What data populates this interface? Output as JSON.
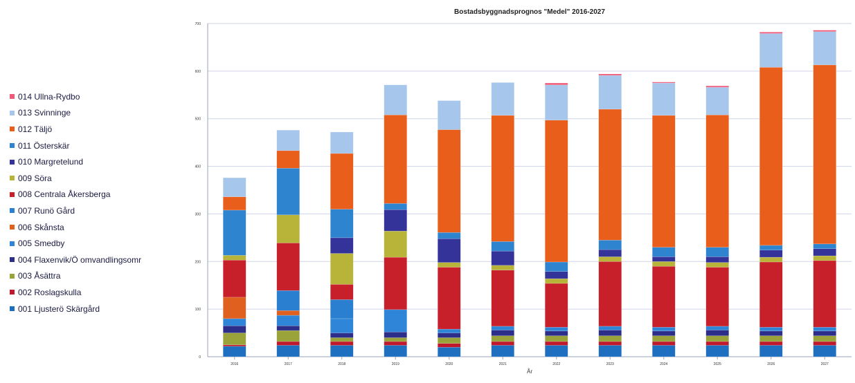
{
  "chart_data": {
    "type": "bar",
    "stacked": true,
    "title": "Bostadsbyggnadsprognos \"Medel\" 2016-2027",
    "xlabel": "År",
    "ylabel": "",
    "ylim": [
      0,
      700
    ],
    "yticks": [
      "0",
      "100",
      "200",
      "300",
      "400",
      "500",
      "600",
      "700"
    ],
    "categories": [
      "2016",
      "2017",
      "2018",
      "2019",
      "2020",
      "2021",
      "2022",
      "2023",
      "2024",
      "2025",
      "2026",
      "2027"
    ],
    "legend_position": "left",
    "grid": true,
    "series": [
      {
        "name": "001 Ljusterö Skärgård",
        "color": "#1f6fc0",
        "values": [
          22,
          24,
          24,
          24,
          20,
          24,
          24,
          24,
          24,
          24,
          24,
          24
        ]
      },
      {
        "name": "002 Roslagskulla",
        "color": "#c0182c",
        "values": [
          3,
          8,
          8,
          8,
          8,
          8,
          8,
          8,
          8,
          8,
          8,
          8
        ]
      },
      {
        "name": "003 Åsättra",
        "color": "#9aa33a",
        "values": [
          25,
          23,
          8,
          8,
          12,
          12,
          12,
          12,
          12,
          12,
          12,
          12
        ]
      },
      {
        "name": "004 Flaxenvik/Ö omvandlingsomr",
        "color": "#2d2d8a",
        "values": [
          15,
          10,
          10,
          12,
          10,
          12,
          10,
          12,
          10,
          12,
          10,
          10
        ]
      },
      {
        "name": "005 Smedby",
        "color": "#2f86d8",
        "values": [
          15,
          22,
          30,
          47,
          8,
          8,
          8,
          8,
          8,
          8,
          8,
          8
        ]
      },
      {
        "name": "006 Skånsta",
        "color": "#e06020",
        "values": [
          45,
          10,
          0,
          0,
          0,
          0,
          0,
          0,
          0,
          0,
          0,
          0
        ]
      },
      {
        "name": "007 Runö Gård",
        "color": "#2a7fd0",
        "values": [
          0,
          42,
          40,
          0,
          0,
          0,
          0,
          0,
          0,
          0,
          0,
          0
        ]
      },
      {
        "name": "008 Centrala Åkersberga",
        "color": "#c8202a",
        "values": [
          78,
          100,
          32,
          110,
          130,
          118,
          92,
          136,
          128,
          124,
          137,
          140
        ]
      },
      {
        "name": "009 Söra",
        "color": "#b8b43a",
        "values": [
          10,
          59,
          65,
          55,
          10,
          10,
          10,
          10,
          10,
          10,
          10,
          10
        ]
      },
      {
        "name": "010 Margretelund",
        "color": "#33339a",
        "values": [
          0,
          0,
          33,
          45,
          50,
          30,
          15,
          15,
          10,
          12,
          15,
          15
        ]
      },
      {
        "name": "011 Österskär",
        "color": "#2f84d0",
        "values": [
          95,
          98,
          60,
          13,
          13,
          20,
          20,
          20,
          20,
          20,
          10,
          10
        ]
      },
      {
        "name": "012 Täljö",
        "color": "#ea5e1c",
        "values": [
          28,
          37,
          117,
          186,
          216,
          265,
          298,
          275,
          277,
          278,
          374,
          376
        ]
      },
      {
        "name": "013 Svinninge",
        "color": "#a6c6ec",
        "values": [
          40,
          43,
          45,
          63,
          61,
          69,
          74,
          71,
          68,
          58,
          71,
          70
        ]
      },
      {
        "name": "014 Ullna-Rydbo",
        "color": "#f05a78",
        "values": [
          0,
          0,
          0,
          0,
          0,
          0,
          4,
          3,
          2,
          3,
          3,
          3
        ]
      }
    ]
  }
}
